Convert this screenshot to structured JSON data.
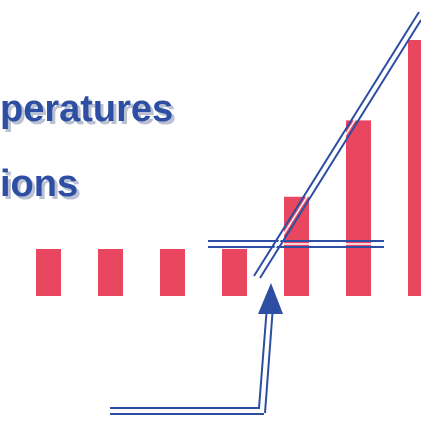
{
  "slide": {
    "title_lines": [
      "peratures",
      "ions"
    ]
  },
  "diagram": {
    "bars": [
      {
        "label": "",
        "relative_height": 0.0
      },
      {
        "label": "",
        "relative_height": 0.0
      },
      {
        "label": "",
        "relative_height": 0.0
      },
      {
        "label": "",
        "relative_height": 0.0
      },
      {
        "label": "",
        "relative_height": 0.22
      },
      {
        "label": "",
        "relative_height": 0.6
      },
      {
        "label": "",
        "relative_height": 1.0
      }
    ],
    "colors": {
      "bar": "#e8475f",
      "line": "#2d4ea3",
      "line_highlight": "#ffffff",
      "title_text": "#2d4ea3",
      "title_shadow": "#b9c0d2"
    }
  }
}
